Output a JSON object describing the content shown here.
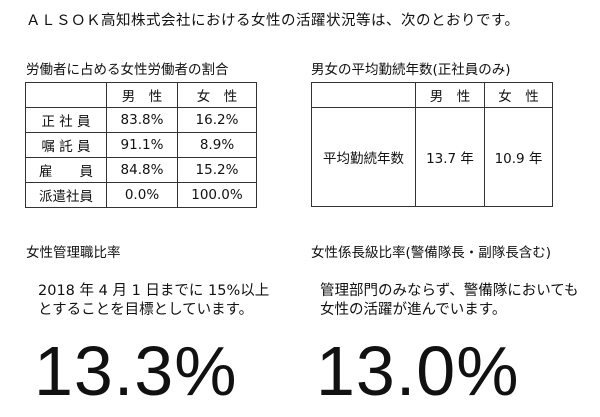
{
  "intro": "ＡＬＳＯＫ高知株式会社における女性の活躍状況等は、次のとおりです。",
  "ratio_section": {
    "title": "労働者に占める女性労働者の割合",
    "headers": [
      "",
      "男　性",
      "女　性"
    ],
    "rows": [
      {
        "label": "正 社 員",
        "male": "83.8%",
        "female": "16.2%"
      },
      {
        "label": "嘱 託 員",
        "male": "91.1%",
        "female": "8.9%"
      },
      {
        "label": "雇　　員",
        "male": "84.8%",
        "female": "15.2%"
      },
      {
        "label": "派遣社員",
        "male": "0.0%",
        "female": "100.0%"
      }
    ]
  },
  "tenure_section": {
    "title": "男女の平均勤続年数(正社員のみ)",
    "headers": [
      "",
      "男　性",
      "女　性"
    ],
    "row_label": "平均勤続年数",
    "male": "13.7 年",
    "female": "10.9 年"
  },
  "manager_section": {
    "title": "女性管理職比率",
    "note_line1": "2018 年 4 月 1 日までに 15%以上",
    "note_line2": "とすることを目標としています。",
    "value": "13.3%"
  },
  "chief_section": {
    "title": "女性係長級比率(警備隊長・副隊長含む)",
    "note_line1": "管理部門のみならず、警備隊においても",
    "note_line2": "女性の活躍が進んでいます。",
    "value": "13.0%"
  }
}
